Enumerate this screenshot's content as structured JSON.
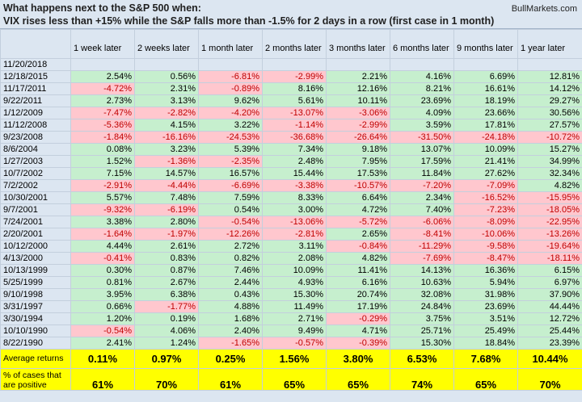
{
  "header": {
    "title": "What happens next to the S&P 500 when:",
    "subtitle": "VIX rises less than +15% while the S&P falls more than -1.5% for 2 days in a row (first case in 1 month)",
    "source": "BullMarkets.com"
  },
  "table": {
    "columns": [
      "1 week later",
      "2 weeks later",
      "1 month later",
      "2 months later",
      "3 months later",
      "6 months later",
      "9 months later",
      "1 year later"
    ],
    "rows": [
      {
        "date": "11/20/2018",
        "values": []
      },
      {
        "date": "12/18/2015",
        "values": [
          "2.54%",
          "0.56%",
          "-6.81%",
          "-2.99%",
          "2.21%",
          "4.16%",
          "6.69%",
          "12.81%"
        ]
      },
      {
        "date": "11/17/2011",
        "values": [
          "-4.72%",
          "2.31%",
          "-0.89%",
          "8.16%",
          "12.16%",
          "8.21%",
          "16.61%",
          "14.12%"
        ]
      },
      {
        "date": "9/22/2011",
        "values": [
          "2.73%",
          "3.13%",
          "9.62%",
          "5.61%",
          "10.11%",
          "23.69%",
          "18.19%",
          "29.27%"
        ]
      },
      {
        "date": "1/12/2009",
        "values": [
          "-7.47%",
          "-2.82%",
          "-4.20%",
          "-13.07%",
          "-3.06%",
          "4.09%",
          "23.66%",
          "30.56%"
        ]
      },
      {
        "date": "11/12/2008",
        "values": [
          "-5.36%",
          "4.15%",
          "3.22%",
          "-1.14%",
          "-2.99%",
          "3.59%",
          "17.81%",
          "27.57%"
        ]
      },
      {
        "date": "9/23/2008",
        "values": [
          "-1.84%",
          "-16.16%",
          "-24.53%",
          "-36.68%",
          "-26.64%",
          "-31.50%",
          "-24.18%",
          "-10.72%"
        ]
      },
      {
        "date": "8/6/2004",
        "values": [
          "0.08%",
          "3.23%",
          "5.39%",
          "7.34%",
          "9.18%",
          "13.07%",
          "10.09%",
          "15.27%"
        ]
      },
      {
        "date": "1/27/2003",
        "values": [
          "1.52%",
          "-1.36%",
          "-2.35%",
          "2.48%",
          "7.95%",
          "17.59%",
          "21.41%",
          "34.99%"
        ]
      },
      {
        "date": "10/7/2002",
        "values": [
          "7.15%",
          "14.57%",
          "16.57%",
          "15.44%",
          "17.53%",
          "11.84%",
          "27.62%",
          "32.34%"
        ]
      },
      {
        "date": "7/2/2002",
        "values": [
          "-2.91%",
          "-4.44%",
          "-6.69%",
          "-3.38%",
          "-10.57%",
          "-7.20%",
          "-7.09%",
          "4.82%"
        ]
      },
      {
        "date": "10/30/2001",
        "values": [
          "5.57%",
          "7.48%",
          "7.59%",
          "8.33%",
          "6.64%",
          "2.34%",
          "-16.52%",
          "-15.95%"
        ]
      },
      {
        "date": "9/7/2001",
        "values": [
          "-9.32%",
          "-6.19%",
          "0.54%",
          "3.00%",
          "4.72%",
          "7.40%",
          "-7.23%",
          "-18.05%"
        ]
      },
      {
        "date": "7/24/2001",
        "values": [
          "3.38%",
          "2.80%",
          "-0.54%",
          "-13.06%",
          "-5.72%",
          "-6.06%",
          "-8.09%",
          "-22.95%"
        ]
      },
      {
        "date": "2/20/2001",
        "values": [
          "-1.64%",
          "-1.97%",
          "-12.26%",
          "-2.81%",
          "2.65%",
          "-8.41%",
          "-10.06%",
          "-13.26%"
        ]
      },
      {
        "date": "10/12/2000",
        "values": [
          "4.44%",
          "2.61%",
          "2.72%",
          "3.11%",
          "-0.84%",
          "-11.29%",
          "-9.58%",
          "-19.64%"
        ]
      },
      {
        "date": "4/13/2000",
        "values": [
          "-0.41%",
          "0.83%",
          "0.82%",
          "2.08%",
          "4.82%",
          "-7.69%",
          "-8.47%",
          "-18.11%"
        ]
      },
      {
        "date": "10/13/1999",
        "values": [
          "0.30%",
          "0.87%",
          "7.46%",
          "10.09%",
          "11.41%",
          "14.13%",
          "16.36%",
          "6.15%"
        ]
      },
      {
        "date": "5/25/1999",
        "values": [
          "0.81%",
          "2.67%",
          "2.44%",
          "4.93%",
          "6.16%",
          "10.63%",
          "5.94%",
          "6.97%"
        ]
      },
      {
        "date": "9/10/1998",
        "values": [
          "3.95%",
          "6.38%",
          "0.43%",
          "15.30%",
          "20.74%",
          "32.08%",
          "31.98%",
          "37.90%"
        ]
      },
      {
        "date": "3/31/1997",
        "values": [
          "0.66%",
          "-1.77%",
          "4.88%",
          "11.49%",
          "17.19%",
          "24.84%",
          "23.69%",
          "44.44%"
        ]
      },
      {
        "date": "3/30/1994",
        "values": [
          "1.20%",
          "0.19%",
          "1.68%",
          "2.71%",
          "-0.29%",
          "3.75%",
          "3.51%",
          "12.72%"
        ]
      },
      {
        "date": "10/10/1990",
        "values": [
          "-0.54%",
          "4.06%",
          "2.40%",
          "9.49%",
          "4.71%",
          "25.71%",
          "25.49%",
          "25.44%"
        ]
      },
      {
        "date": "8/22/1990",
        "values": [
          "2.41%",
          "1.24%",
          "-1.65%",
          "-0.57%",
          "-0.39%",
          "15.30%",
          "18.84%",
          "23.39%"
        ]
      }
    ],
    "summary": [
      {
        "label": "Average returns",
        "values": [
          "0.11%",
          "0.97%",
          "0.25%",
          "1.56%",
          "3.80%",
          "6.53%",
          "7.68%",
          "10.44%"
        ]
      },
      {
        "label": "% of cases that are positive",
        "values": [
          "61%",
          "70%",
          "61%",
          "65%",
          "65%",
          "74%",
          "65%",
          "70%"
        ]
      }
    ]
  }
}
